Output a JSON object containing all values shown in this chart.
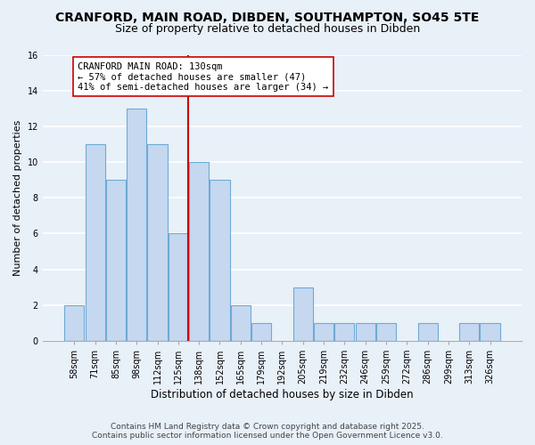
{
  "title": "CRANFORD, MAIN ROAD, DIBDEN, SOUTHAMPTON, SO45 5TE",
  "subtitle": "Size of property relative to detached houses in Dibden",
  "xlabel": "Distribution of detached houses by size in Dibden",
  "ylabel": "Number of detached properties",
  "categories": [
    "58sqm",
    "71sqm",
    "85sqm",
    "98sqm",
    "112sqm",
    "125sqm",
    "138sqm",
    "152sqm",
    "165sqm",
    "179sqm",
    "192sqm",
    "205sqm",
    "219sqm",
    "232sqm",
    "246sqm",
    "259sqm",
    "272sqm",
    "286sqm",
    "299sqm",
    "313sqm",
    "326sqm"
  ],
  "values": [
    2,
    11,
    9,
    13,
    11,
    6,
    10,
    9,
    2,
    1,
    0,
    3,
    1,
    1,
    1,
    1,
    0,
    1,
    0,
    1,
    1
  ],
  "bar_color": "#c5d8f0",
  "bar_edge_color": "#6faad4",
  "vline_x_index": 5.5,
  "vline_color": "#cc0000",
  "annotation_text": "CRANFORD MAIN ROAD: 130sqm\n← 57% of detached houses are smaller (47)\n41% of semi-detached houses are larger (34) →",
  "annotation_box_color": "white",
  "annotation_box_edge_color": "#cc0000",
  "ylim": [
    0,
    16
  ],
  "yticks": [
    0,
    2,
    4,
    6,
    8,
    10,
    12,
    14,
    16
  ],
  "background_color": "#e8f0f8",
  "grid_color": "white",
  "footer_line1": "Contains HM Land Registry data © Crown copyright and database right 2025.",
  "footer_line2": "Contains public sector information licensed under the Open Government Licence v3.0.",
  "title_fontsize": 10,
  "subtitle_fontsize": 9,
  "xlabel_fontsize": 8.5,
  "ylabel_fontsize": 8,
  "tick_fontsize": 7,
  "annotation_fontsize": 7.5,
  "footer_fontsize": 6.5
}
